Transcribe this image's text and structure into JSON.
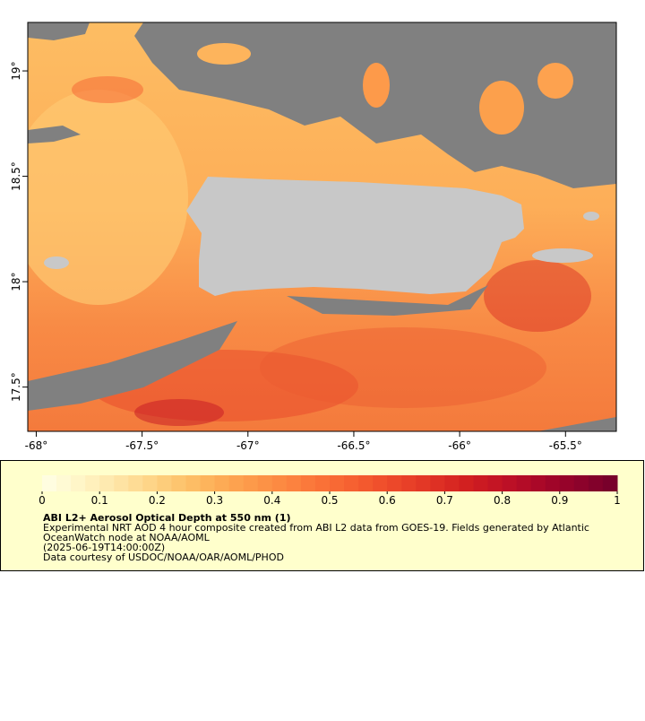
{
  "map": {
    "xlim": [
      -68.04,
      -65.26
    ],
    "ylim": [
      17.29,
      19.23
    ],
    "xticks": [
      {
        "value": -68,
        "label": "-68°"
      },
      {
        "value": -67.5,
        "label": "-67.5°"
      },
      {
        "value": -67,
        "label": "-67°"
      },
      {
        "value": -66.5,
        "label": "-66.5°"
      },
      {
        "value": -66,
        "label": "-66°"
      },
      {
        "value": -65.5,
        "label": "-65.5°"
      }
    ],
    "yticks": [
      {
        "value": 17.5,
        "label": "17.5°"
      },
      {
        "value": 18,
        "label": "18°"
      },
      {
        "value": 18.5,
        "label": "18.5°"
      },
      {
        "value": 19,
        "label": "19°"
      }
    ]
  },
  "colorbar": {
    "range": [
      0,
      1
    ],
    "ticks": [
      0,
      0.1,
      0.2,
      0.3,
      0.4,
      0.5,
      0.6,
      0.7,
      0.8,
      0.9,
      1
    ],
    "colors": [
      "#fffde0",
      "#fffad4",
      "#fff6c8",
      "#fff0bc",
      "#feeab0",
      "#fee3a3",
      "#fedc95",
      "#fed588",
      "#fdcd7b",
      "#fdc56f",
      "#fdbd65",
      "#fdb45c",
      "#fdab55",
      "#fda24f",
      "#fd9a4a",
      "#fc9246",
      "#fc8a42",
      "#fc823f",
      "#fb793b",
      "#fa7137",
      "#f86934",
      "#f66131",
      "#f3592e",
      "#f0502c",
      "#ec482a",
      "#e84028",
      "#e33826",
      "#de3024",
      "#d82822",
      "#d22020",
      "#cb1a22",
      "#c41524",
      "#bc1026",
      "#b30c27",
      "#aa0828",
      "#a00529",
      "#96032a",
      "#8c022b",
      "#82012b",
      "#78002b"
    ],
    "title": "ABI L2+ Aerosol Optical Depth at 550 nm (1)",
    "description": [
      "Experimental NRT AOD 4 hour composite created from ABI L2 data from GOES-19. Fields generated by Atlantic",
      "OceanWatch node at NOAA/AOML",
      "(2025-06-19T14:00:00Z)",
      "Data courtesy of USDOC/NOAA/OAR/AOML/PHOD"
    ]
  }
}
